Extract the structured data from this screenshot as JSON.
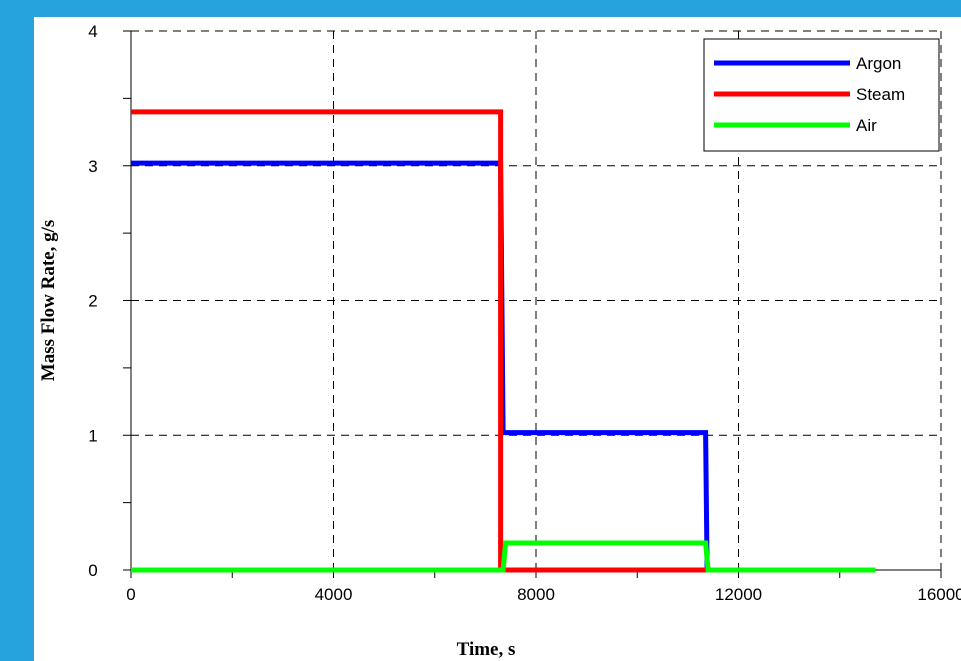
{
  "colors": {
    "background": "#27a3db",
    "panel": "#ffffff"
  },
  "chart_data": {
    "type": "line",
    "title": "",
    "xlabel": "Time, s",
    "ylabel": "Mass Flow Rate, g/s",
    "xlim": [
      0,
      16000
    ],
    "ylim": [
      0,
      4
    ],
    "x_ticks": [
      0,
      4000,
      8000,
      12000,
      16000
    ],
    "x_tick_labels": [
      "0",
      "4000",
      "8000",
      "12000",
      "16000"
    ],
    "y_ticks": [
      0,
      1,
      2,
      3,
      4
    ],
    "y_tick_labels": [
      "0",
      "1",
      "2",
      "3",
      "4"
    ],
    "grid": true,
    "grid_style": "dashed",
    "legend_position": "top-right",
    "series": [
      {
        "name": "Argon",
        "color": "#0000ff",
        "points": [
          [
            0,
            3.02
          ],
          [
            7300,
            3.02
          ],
          [
            7350,
            1.02
          ],
          [
            11350,
            1.02
          ],
          [
            11380,
            0
          ],
          [
            14700,
            0
          ]
        ]
      },
      {
        "name": "Steam",
        "color": "#ff0000",
        "points": [
          [
            0,
            3.4
          ],
          [
            7300,
            3.4
          ],
          [
            7300,
            0
          ],
          [
            11350,
            0
          ]
        ]
      },
      {
        "name": "Air",
        "color": "#00ff00",
        "points": [
          [
            0,
            0
          ],
          [
            7350,
            0
          ],
          [
            7400,
            0.2
          ],
          [
            11350,
            0.2
          ],
          [
            11400,
            0
          ],
          [
            14700,
            0
          ]
        ]
      }
    ]
  }
}
